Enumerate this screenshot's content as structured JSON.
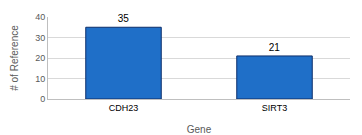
{
  "chart_data": {
    "type": "bar",
    "x_label": "Gene",
    "y_label": "# of Reference",
    "categories": [
      "CDH23",
      "SIRT3"
    ],
    "values": [
      35,
      21
    ],
    "color": "#1f6fc8",
    "ylim": [
      0,
      40
    ],
    "yticks": [
      0,
      10,
      20,
      30,
      40
    ],
    "grid": true,
    "data_labels": true
  }
}
